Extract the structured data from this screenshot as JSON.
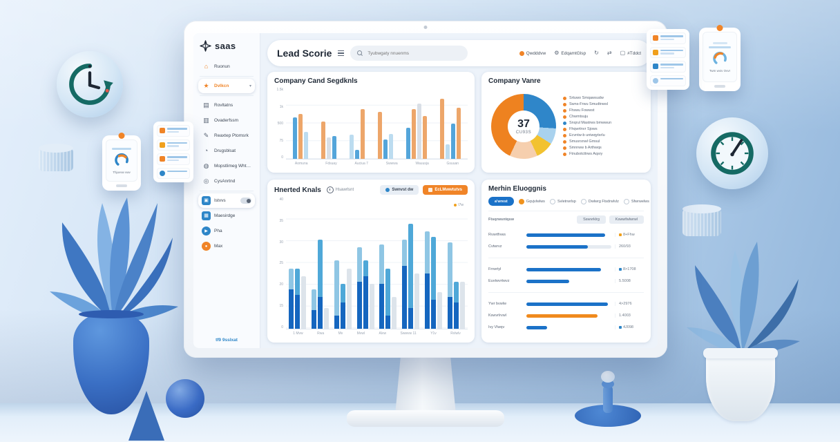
{
  "accent": {
    "orange": "#f08427",
    "blue": "#1f7ac4",
    "teal": "#17655f"
  },
  "logo": {
    "text": "saas"
  },
  "header": {
    "title": "Lead Scorie",
    "search_placeholder": "Tyubwgaty nnuenms",
    "actions": [
      {
        "icon": "status-dot-icon",
        "label": "Qwdddvw"
      },
      {
        "icon": "gear-icon",
        "label": "EdqamtGlsp"
      },
      {
        "icon": "refresh-icon",
        "label": ""
      },
      {
        "icon": "swap-icon",
        "label": ""
      },
      {
        "icon": "panel-icon",
        "label": "#Tddct"
      }
    ]
  },
  "sidebar": {
    "items": [
      {
        "icon": "home-icon",
        "label": "Ruonun",
        "color": "orange"
      },
      {
        "icon": "star-icon",
        "label": "Dvlkcn",
        "color": "orange",
        "active": true,
        "chevron": true
      },
      {
        "icon": "report-icon",
        "label": "Rovltatns",
        "color": "dark"
      },
      {
        "icon": "layers-icon",
        "label": "Ovaderfssm",
        "color": "dark"
      },
      {
        "icon": "pencil-icon",
        "label": "Reaxtep Ptomsrk",
        "color": "dark"
      },
      {
        "icon": "clock-icon",
        "label": "Drugsblsat",
        "color": "dark"
      },
      {
        "icon": "user-icon",
        "label": "Mopstlimeg Whtsive",
        "color": "dark"
      },
      {
        "icon": "globe-icon",
        "label": "CysAnrtnd",
        "color": "dark"
      },
      {
        "icon": "card-icon",
        "label": "Istvvs",
        "color": "blue",
        "toggle": true,
        "highlight": true
      },
      {
        "icon": "grid-icon",
        "label": "Maesirdge",
        "color": "blue"
      },
      {
        "icon": "play-icon",
        "label": "Pha",
        "color": "blue2"
      },
      {
        "icon": "dot-icon",
        "label": "Max",
        "color": "orange2"
      }
    ],
    "bottom_link": "tf9 9sslxat"
  },
  "cards": {
    "segments": {
      "title": "Company Cand Segdknls",
      "chart": {
        "type": "bar",
        "yticks": [
          "1.5k",
          "1k",
          "500",
          "75",
          "0"
        ],
        "colors": {
          "blue": "#54a5da",
          "orange": "#eda66a",
          "light": "#bcdcf0",
          "gray": "#d9dfe6"
        },
        "groups": [
          {
            "label": "Aomuna",
            "bars": [
              {
                "c": "blue",
                "v": 58
              },
              {
                "c": "orange",
                "v": 63
              },
              {
                "c": "light",
                "v": 38
              }
            ]
          },
          {
            "label": "Fdsuay",
            "bars": [
              {
                "c": "orange",
                "v": 52
              },
              {
                "c": "gray",
                "v": 30
              },
              {
                "c": "blue",
                "v": 32
              }
            ]
          },
          {
            "label": "Auciua 7",
            "bars": [
              {
                "c": "light",
                "v": 34
              },
              {
                "c": "blue",
                "v": 13
              },
              {
                "c": "orange",
                "v": 70
              }
            ]
          },
          {
            "label": "Swwwa",
            "bars": [
              {
                "c": "orange",
                "v": 66
              },
              {
                "c": "blue",
                "v": 27
              },
              {
                "c": "light",
                "v": 35
              }
            ]
          },
          {
            "label": "Wauusja",
            "bars": [
              {
                "c": "blue",
                "v": 44
              },
              {
                "c": "orange",
                "v": 70
              },
              {
                "c": "gray",
                "v": 78
              },
              {
                "c": "orange",
                "v": 60
              }
            ]
          },
          {
            "label": "Gsuuan",
            "bars": [
              {
                "c": "orange",
                "v": 84
              },
              {
                "c": "light",
                "v": 20
              },
              {
                "c": "blue",
                "v": 50
              },
              {
                "c": "orange",
                "v": 72
              }
            ]
          }
        ]
      }
    },
    "venue": {
      "title": "Company Vanre",
      "center_value": "37",
      "center_label": "CU93S",
      "chart": {
        "type": "pie",
        "segments": [
          {
            "label": "Srtuwo Smqawsudw",
            "color": "#2f86c9",
            "value": 26
          },
          {
            "label": "Swns-Frwu Smudtnwsl",
            "color": "#a9d2ee",
            "value": 8
          },
          {
            "label": "Fhswu Fowwst",
            "color": "#f2c230",
            "value": 9
          },
          {
            "label": "Chwmtsuju",
            "color": "#f6cfae",
            "value": 14
          },
          {
            "label": "Snqrul Mastrws",
            "color": "#ee8220",
            "value": 43
          }
        ]
      },
      "legend": [
        {
          "dot": "#f08427",
          "label": "Srtuwo Smqawsudw"
        },
        {
          "dot": "#f08427",
          "label": "Swns-Frwu Smudtnwsl"
        },
        {
          "dot": "#f08427",
          "label": "Fhswu Fowwst"
        },
        {
          "dot": "#f08427",
          "label": "Chwmtsuju"
        },
        {
          "dot": "#2e86c8",
          "label": "Snqrul Mastrws bmwwun"
        },
        {
          "dot": "#f08427",
          "label": "Fhqwrtnvr Sjows"
        },
        {
          "dot": "#f08427",
          "label": "Ecvntw-b uniwqytsrlu"
        },
        {
          "dot": "#f08427",
          "label": "Smusrsnwl Gmsul"
        },
        {
          "dot": "#f08427",
          "label": "Smnrww b Arthwqs"
        },
        {
          "dot": "#f08427",
          "label": "Ftnubotcttrws Aqsry"
        }
      ]
    },
    "knals": {
      "title": "Hnerted Knals",
      "subtitle": "Hsawrlsnt",
      "buttons": [
        {
          "style": "light",
          "label": "Swnvst dw"
        },
        {
          "style": "orange",
          "label": "EcLMwwtutvs"
        }
      ],
      "legend_chip": "I7w",
      "chart": {
        "type": "bar-stacked",
        "yticks": [
          "40",
          "35",
          "30",
          "25",
          "20",
          "15",
          "0"
        ],
        "groups": [
          {
            "label": "1 Mvw",
            "s1": [
              30,
              16
            ],
            "s2": [
              26,
              20
            ],
            "g": 40
          },
          {
            "label": "Rwa",
            "s1": [
              14,
              16
            ],
            "s2": [
              24,
              44
            ],
            "g": 16
          },
          {
            "label": "Mv",
            "s1": [
              10,
              42
            ],
            "s2": [
              20,
              14
            ],
            "g": 46
          },
          {
            "label": "Mvwl",
            "s1": [
              36,
              26
            ],
            "s2": [
              40,
              12
            ],
            "g": 34
          },
          {
            "label": "Alvw",
            "s1": [
              34,
              30
            ],
            "s2": [
              10,
              36
            ],
            "g": 24
          },
          {
            "label": "Swwvw 11",
            "s1": [
              48,
              20
            ],
            "s2": [
              16,
              64
            ],
            "g": 42
          },
          {
            "label": "Y1v",
            "s1": [
              42,
              32
            ],
            "s2": [
              22,
              48
            ],
            "g": 28
          },
          {
            "label": "Rvlwlv",
            "s1": [
              24,
              42
            ],
            "s2": [
              20,
              16
            ],
            "g": 36
          }
        ]
      }
    },
    "metrics": {
      "title": "Merhin Eluoggnis",
      "active_pill": "a'wrest",
      "radios": [
        {
          "label": "Gqvjvlwlws",
          "checked": true
        },
        {
          "label": "Svletrwrlsp",
          "checked": false
        },
        {
          "label": "Dwlwrg Ftsdrwlvlz",
          "checked": false
        },
        {
          "label": "Sfwrwelws",
          "checked": false
        }
      ],
      "row_header": "Ftsqrwsntqsw",
      "column_pills": [
        "Sswvrklrg",
        "Kswwfwlwrwl"
      ],
      "rows": [
        {
          "label": "Rvwrtfvws",
          "pct": 93,
          "color": "#1b72c8",
          "value": "8+Fhw",
          "accent": "#f0a01d"
        },
        {
          "label": "Cvtwrvz",
          "pct": 72,
          "color": "#1b72c8",
          "value": "260/93",
          "track": true
        },
        {
          "label": "Frrwrtyl",
          "pct": 88,
          "color": "#1b72c8",
          "value": "8>1708",
          "accent": "#2e86c8"
        },
        {
          "label": "Euvtwvrtwvz",
          "pct": 50,
          "color": "#1b72c8",
          "value": "5.5008"
        },
        {
          "label": "Ywr bvwlw",
          "pct": 96,
          "color": "#1b72c8",
          "value": "4>2976"
        },
        {
          "label": "Kswvrlrvwl",
          "pct": 84,
          "color": "#f08a1d",
          "value": "1.4003"
        },
        {
          "label": "Ivy Vlwqv",
          "pct": 24,
          "color": "#1b72c8",
          "value": "4J098",
          "accent": "#2e86c8"
        }
      ],
      "dividers": [
        1,
        3
      ]
    }
  },
  "decor": {
    "left_phone_caption": "Thjuvvw vwv",
    "right_phone_caption": "Twm wviv Ovvr"
  }
}
